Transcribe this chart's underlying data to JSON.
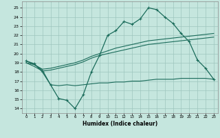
{
  "xlabel": "Humidex (Indice chaleur)",
  "background_color": "#c5e6de",
  "grid_color": "#9dc5be",
  "line_color": "#1a6b5a",
  "xlim": [
    -0.5,
    23.5
  ],
  "ylim": [
    13.5,
    25.7
  ],
  "xticks": [
    0,
    1,
    2,
    3,
    4,
    5,
    6,
    7,
    8,
    9,
    10,
    11,
    12,
    13,
    14,
    15,
    16,
    17,
    18,
    19,
    20,
    21,
    22,
    23
  ],
  "yticks": [
    14,
    15,
    16,
    17,
    18,
    19,
    20,
    21,
    22,
    23,
    24,
    25
  ],
  "main_x": [
    0,
    1,
    2,
    3,
    4,
    5,
    6,
    7,
    8,
    9,
    10,
    11,
    12,
    13,
    14,
    15,
    16,
    17,
    18,
    19,
    20,
    21,
    22,
    23
  ],
  "main_y": [
    19.2,
    18.9,
    18.0,
    16.6,
    15.1,
    14.9,
    14.0,
    15.5,
    18.0,
    19.8,
    22.0,
    22.5,
    23.5,
    23.2,
    23.8,
    25.0,
    24.8,
    24.0,
    23.3,
    22.2,
    21.3,
    19.3,
    18.4,
    17.2
  ],
  "flat_x": [
    0,
    1,
    2,
    3,
    4,
    5,
    6,
    7,
    8,
    9,
    10,
    11,
    12,
    13,
    14,
    15,
    16,
    17,
    18,
    19,
    20,
    21,
    22,
    23
  ],
  "flat_y": [
    19.0,
    18.8,
    18.2,
    16.6,
    16.5,
    16.6,
    16.5,
    16.6,
    16.7,
    16.8,
    16.8,
    16.9,
    16.9,
    17.0,
    17.0,
    17.1,
    17.2,
    17.2,
    17.2,
    17.3,
    17.3,
    17.3,
    17.3,
    17.2
  ],
  "upper_x": [
    0,
    1,
    2,
    3,
    4,
    5,
    6,
    7,
    8,
    9,
    10,
    11,
    12,
    13,
    14,
    15,
    16,
    17,
    18,
    19,
    20,
    21,
    22,
    23
  ],
  "upper_y": [
    19.2,
    18.8,
    18.3,
    18.4,
    18.6,
    18.8,
    19.0,
    19.3,
    19.7,
    20.0,
    20.3,
    20.6,
    20.8,
    21.0,
    21.2,
    21.4,
    21.5,
    21.6,
    21.7,
    21.8,
    21.9,
    22.0,
    22.1,
    22.2
  ],
  "lower_x": [
    0,
    1,
    2,
    3,
    4,
    5,
    6,
    7,
    8,
    9,
    10,
    11,
    12,
    13,
    14,
    15,
    16,
    17,
    18,
    19,
    20,
    21,
    22,
    23
  ],
  "lower_y": [
    19.0,
    18.6,
    18.1,
    18.2,
    18.4,
    18.6,
    18.8,
    19.1,
    19.5,
    19.8,
    20.0,
    20.2,
    20.4,
    20.6,
    20.8,
    21.0,
    21.1,
    21.2,
    21.3,
    21.4,
    21.5,
    21.6,
    21.7,
    21.8
  ]
}
